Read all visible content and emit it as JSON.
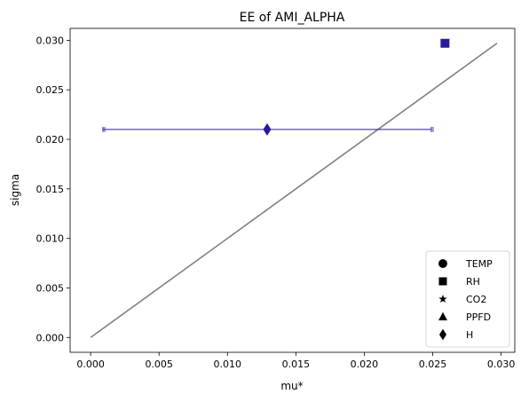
{
  "chart_data": {
    "type": "scatter",
    "title": "EE of AMI_ALPHA",
    "xlabel": "mu*",
    "ylabel": "sigma",
    "xlim": [
      -0.0015,
      0.031
    ],
    "ylim": [
      -0.0015,
      0.0312
    ],
    "xticks": [
      "0.000",
      "0.005",
      "0.010",
      "0.015",
      "0.020",
      "0.025",
      "0.030"
    ],
    "yticks": [
      "0.000",
      "0.005",
      "0.010",
      "0.015",
      "0.020",
      "0.025",
      "0.030"
    ],
    "grid": false,
    "legend_position": "lower-right",
    "reference_line": {
      "x": [
        0.0,
        0.0297
      ],
      "y": [
        0.0,
        0.0297
      ],
      "color": "#808080"
    },
    "marker_color": "#2a1a9a",
    "points": [
      {
        "name": "RH",
        "marker": "square",
        "x": 0.0259,
        "y": 0.0297
      },
      {
        "name": "H",
        "marker": "diamond",
        "x": 0.0129,
        "y": 0.021,
        "xerr_low": 0.0009,
        "xerr_high": 0.0249
      }
    ],
    "legend": [
      {
        "label": "TEMP",
        "marker": "circle"
      },
      {
        "label": "RH",
        "marker": "square"
      },
      {
        "label": "CO2",
        "marker": "star"
      },
      {
        "label": "PPFD",
        "marker": "triangle"
      },
      {
        "label": "H",
        "marker": "diamond"
      }
    ]
  }
}
